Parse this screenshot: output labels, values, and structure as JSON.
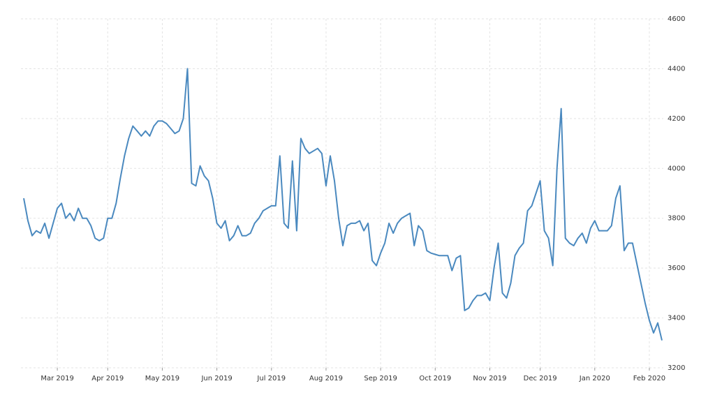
{
  "chart_data": {
    "type": "line",
    "categories": [
      null,
      null,
      null,
      null,
      null,
      null,
      null,
      null,
      "Mar 2019",
      null,
      null,
      null,
      null,
      null,
      null,
      null,
      null,
      null,
      null,
      null,
      "Apr 2019",
      null,
      null,
      null,
      null,
      null,
      null,
      null,
      null,
      null,
      null,
      null,
      null,
      "May 2019",
      null,
      null,
      null,
      null,
      null,
      null,
      null,
      null,
      null,
      null,
      null,
      null,
      "Jun 2019",
      null,
      null,
      null,
      null,
      null,
      null,
      null,
      null,
      null,
      null,
      null,
      null,
      "Jul 2019",
      null,
      null,
      null,
      null,
      null,
      null,
      null,
      null,
      null,
      null,
      null,
      null,
      "Aug 2019",
      null,
      null,
      null,
      null,
      null,
      null,
      null,
      null,
      null,
      null,
      null,
      null,
      "Sep 2019",
      null,
      null,
      null,
      null,
      null,
      null,
      null,
      null,
      null,
      null,
      null,
      null,
      "Oct 2019",
      null,
      null,
      null,
      null,
      null,
      null,
      null,
      null,
      null,
      null,
      null,
      null,
      "Nov 2019",
      null,
      null,
      null,
      null,
      null,
      null,
      null,
      null,
      null,
      null,
      null,
      "Dec 2019",
      null,
      null,
      null,
      null,
      null,
      null,
      null,
      null,
      null,
      null,
      null,
      null,
      "Jan 2020",
      null,
      null,
      null,
      null,
      null,
      null,
      null,
      null,
      null,
      null,
      null,
      null,
      "Feb 2020",
      null,
      null,
      null
    ],
    "values": [
      3880,
      3790,
      3730,
      3750,
      3740,
      3780,
      3720,
      3780,
      3840,
      3860,
      3800,
      3820,
      3790,
      3840,
      3800,
      3800,
      3770,
      3720,
      3710,
      3720,
      3800,
      3800,
      3860,
      3960,
      4050,
      4120,
      4170,
      4150,
      4130,
      4150,
      4130,
      4170,
      4190,
      4190,
      4180,
      4160,
      4140,
      4150,
      4200,
      4400,
      3940,
      3930,
      4010,
      3970,
      3950,
      3880,
      3780,
      3760,
      3790,
      3710,
      3730,
      3770,
      3730,
      3730,
      3740,
      3780,
      3800,
      3830,
      3840,
      3850,
      3850,
      4050,
      3780,
      3760,
      4030,
      3750,
      4120,
      4080,
      4060,
      4070,
      4080,
      4060,
      3930,
      4050,
      3950,
      3800,
      3690,
      3770,
      3780,
      3780,
      3790,
      3750,
      3780,
      3630,
      3610,
      3660,
      3700,
      3780,
      3740,
      3780,
      3800,
      3810,
      3820,
      3690,
      3770,
      3750,
      3670,
      3660,
      3655,
      3650,
      3650,
      3650,
      3590,
      3640,
      3650,
      3430,
      3440,
      3470,
      3490,
      3490,
      3500,
      3470,
      3600,
      3700,
      3500,
      3480,
      3540,
      3650,
      3680,
      3700,
      3830,
      3850,
      3900,
      3950,
      3750,
      3720,
      3610,
      4000,
      4240,
      3720,
      3700,
      3690,
      3720,
      3740,
      3700,
      3760,
      3790,
      3750,
      3750,
      3750,
      3770,
      3880,
      3930,
      3670,
      3700,
      3700,
      3620,
      3540,
      3460,
      3390,
      3340,
      3380,
      3310
    ],
    "color": "#4a89bf",
    "ylim": [
      3200,
      4600
    ],
    "yticks": [
      3200,
      3400,
      3600,
      3800,
      4000,
      4200,
      4400,
      4600
    ],
    "grid": true
  }
}
